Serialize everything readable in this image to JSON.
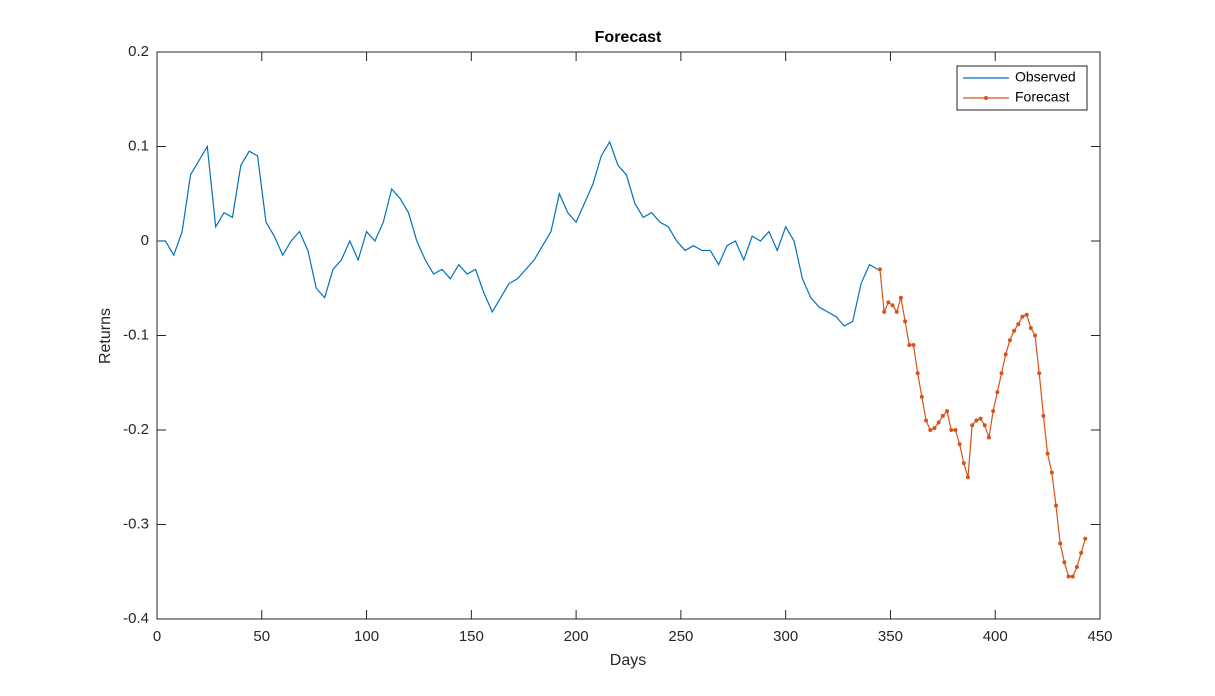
{
  "chart_data": {
    "type": "line",
    "title": "Forecast",
    "x_label": "Days",
    "y_label": "Returns",
    "xlim": [
      0,
      450
    ],
    "xticks": [
      0,
      50,
      100,
      150,
      200,
      250,
      300,
      350,
      400,
      450
    ],
    "ylim": [
      -0.4,
      0.2
    ],
    "yticks": [
      -0.4,
      -0.3,
      -0.2,
      -0.1,
      0,
      0.1,
      0.2
    ],
    "grid": false,
    "legend": "northeast",
    "series": [
      {
        "name": "Observed",
        "color": "#0072bd",
        "marker": false,
        "x": [
          0,
          4,
          8,
          12,
          16,
          20,
          24,
          28,
          32,
          36,
          40,
          44,
          48,
          52,
          56,
          60,
          64,
          68,
          72,
          76,
          80,
          84,
          88,
          92,
          96,
          100,
          104,
          108,
          112,
          116,
          120,
          124,
          128,
          132,
          136,
          140,
          144,
          148,
          152,
          156,
          160,
          164,
          168,
          172,
          176,
          180,
          184,
          188,
          192,
          196,
          200,
          204,
          208,
          212,
          216,
          220,
          224,
          228,
          232,
          236,
          240,
          244,
          248,
          252,
          256,
          260,
          264,
          268,
          272,
          276,
          280,
          284,
          288,
          292,
          296,
          300,
          304,
          308,
          312,
          316,
          320,
          324,
          328,
          332,
          336,
          340,
          344
        ],
        "values": [
          0,
          0,
          -0.015,
          0.01,
          0.07,
          0.085,
          0.1,
          0.015,
          0.03,
          0.025,
          0.08,
          0.095,
          0.09,
          0.02,
          0.005,
          -0.015,
          0,
          0.01,
          -0.01,
          -0.05,
          -0.06,
          -0.03,
          -0.02,
          0,
          -0.02,
          0.01,
          0,
          0.02,
          0.055,
          0.045,
          0.03,
          0,
          -0.02,
          -0.035,
          -0.03,
          -0.04,
          -0.025,
          -0.035,
          -0.03,
          -0.055,
          -0.075,
          -0.06,
          -0.045,
          -0.04,
          -0.03,
          -0.02,
          -0.005,
          0.01,
          0.05,
          0.03,
          0.02,
          0.04,
          0.06,
          0.09,
          0.105,
          0.08,
          0.07,
          0.04,
          0.025,
          0.03,
          0.02,
          0.015,
          0,
          -0.01,
          -0.005,
          -0.01,
          -0.01,
          -0.025,
          -0.005,
          0,
          -0.02,
          0.005,
          0,
          0.01,
          -0.01,
          0.015,
          0,
          -0.04,
          -0.06,
          -0.07,
          -0.075,
          -0.08,
          -0.09,
          -0.085,
          -0.045,
          -0.025,
          -0.03
        ]
      },
      {
        "name": "Forecast",
        "color": "#d95319",
        "marker": true,
        "x": [
          345,
          347,
          349,
          351,
          353,
          355,
          357,
          359,
          361,
          363,
          365,
          367,
          369,
          371,
          373,
          375,
          377,
          379,
          381,
          383,
          385,
          387,
          389,
          391,
          393,
          395,
          397,
          399,
          401,
          403,
          405,
          407,
          409,
          411,
          413,
          415,
          417,
          419,
          421,
          423,
          425,
          427,
          429,
          431,
          433,
          435,
          437,
          439,
          441,
          443
        ],
        "values": [
          -0.03,
          -0.075,
          -0.065,
          -0.068,
          -0.075,
          -0.06,
          -0.085,
          -0.11,
          -0.11,
          -0.14,
          -0.165,
          -0.19,
          -0.2,
          -0.198,
          -0.192,
          -0.185,
          -0.18,
          -0.2,
          -0.2,
          -0.215,
          -0.235,
          -0.25,
          -0.195,
          -0.19,
          -0.188,
          -0.195,
          -0.208,
          -0.18,
          -0.16,
          -0.14,
          -0.12,
          -0.105,
          -0.095,
          -0.088,
          -0.08,
          -0.078,
          -0.092,
          -0.1,
          -0.14,
          -0.185,
          -0.225,
          -0.245,
          -0.28,
          -0.32,
          -0.34,
          -0.355,
          -0.355,
          -0.345,
          -0.33,
          -0.315
        ]
      }
    ]
  }
}
